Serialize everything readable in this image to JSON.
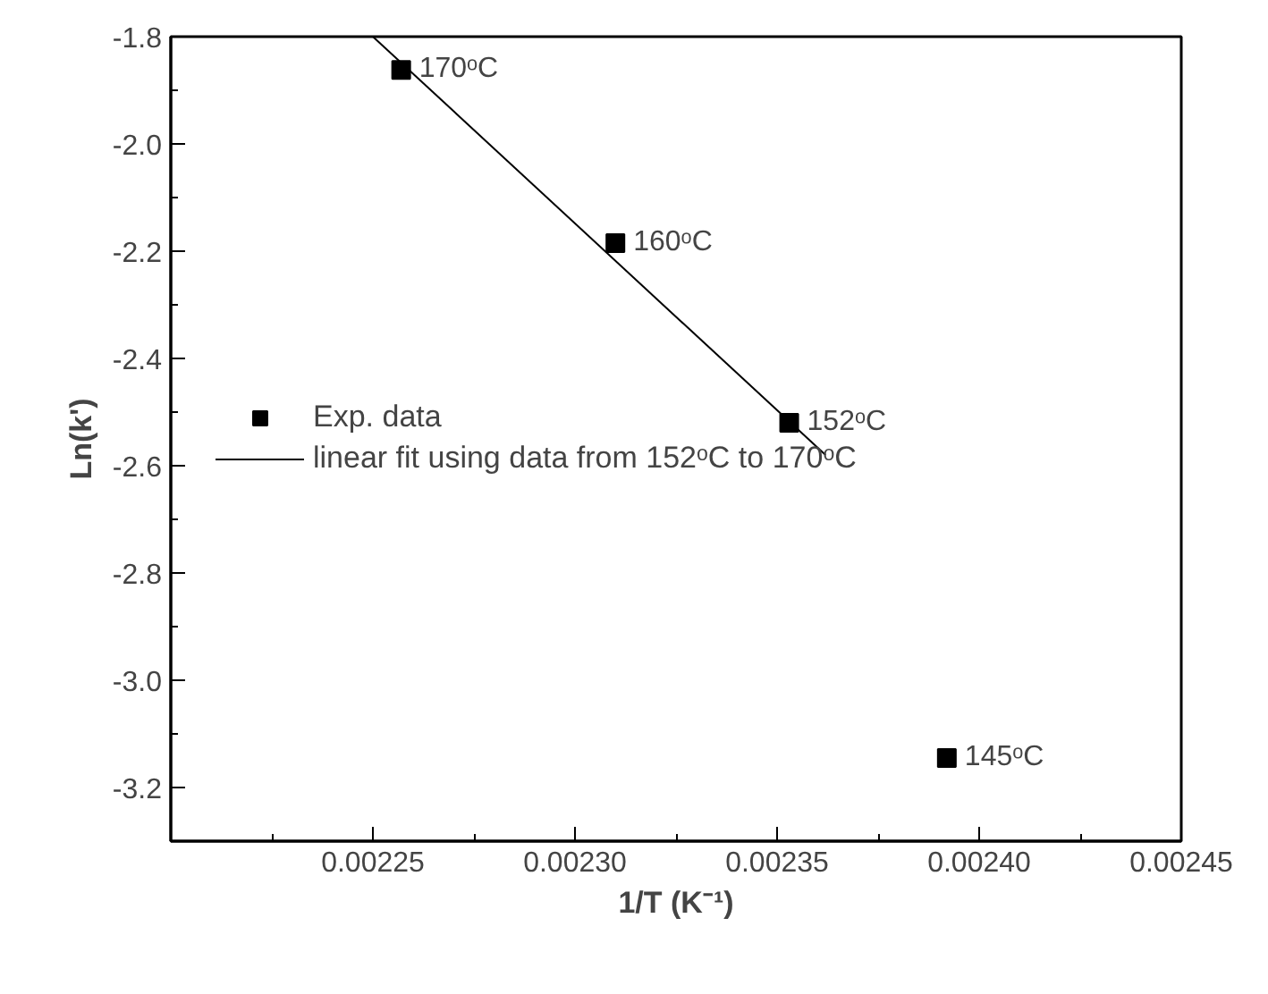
{
  "chart_data": {
    "type": "scatter",
    "xlabel": "1/T (K⁻¹)",
    "ylabel": "Ln(k')",
    "xlim": [
      0.0022,
      0.00245
    ],
    "ylim": [
      -3.3,
      -1.8
    ],
    "xticks": [
      {
        "value": 0.0022,
        "label": null
      },
      0.00225,
      {
        "value": 0.0023,
        "label": "0.00230"
      },
      0.00235,
      {
        "value": 0.0024,
        "label": "0.00240"
      },
      0.00245
    ],
    "yticks": [
      -1.8,
      {
        "value": -2.0,
        "label": "-2.0"
      },
      -2.2,
      -2.4,
      -2.6,
      -2.8,
      {
        "value": -3.0,
        "label": "-3.0"
      },
      -3.2
    ],
    "series": [
      {
        "name": "Exp. data",
        "marker": "square",
        "color": "#000000",
        "x": [
          0.002257,
          0.00231,
          0.002353,
          0.002392
        ],
        "values": [
          -1.862,
          -2.185,
          -2.52,
          -3.145
        ]
      },
      {
        "name": "linear fit using data from 152ᵒC to 170ᵒC",
        "type": "line",
        "marker": "none",
        "line_style": "solid",
        "color": "#000000",
        "x": [
          0.00225,
          0.002362
        ],
        "values": [
          -1.8,
          -2.58
        ]
      }
    ],
    "annotations": [
      {
        "text": "170ᵒC",
        "x": 0.002257,
        "y": -1.862
      },
      {
        "text": "160ᵒC",
        "x": 0.00231,
        "y": -2.185
      },
      {
        "text": "152ᵒC",
        "x": 0.002353,
        "y": -2.52
      },
      {
        "text": "145ᵒC",
        "x": 0.002392,
        "y": -3.145
      }
    ],
    "legend": "left",
    "grid": false
  }
}
